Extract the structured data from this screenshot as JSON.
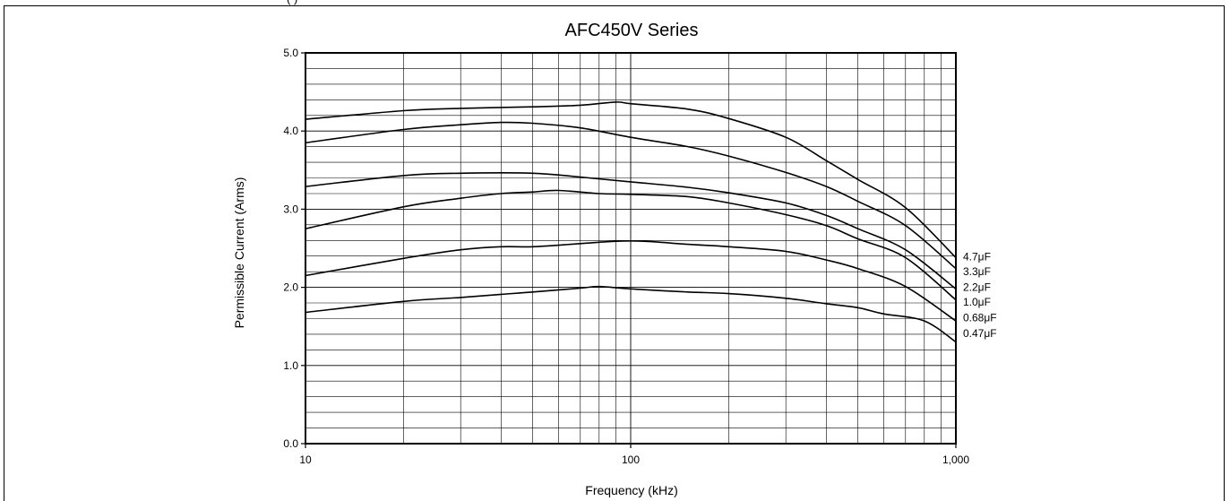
{
  "header_crop_text": "(                    )",
  "chart_data": {
    "type": "line",
    "title": "AFC450V Series",
    "xlabel": "Frequency (kHz)",
    "ylabel": "Permissible Current (Arms)",
    "xscale": "log",
    "xlim": [
      10,
      1000
    ],
    "ylim": [
      0,
      5
    ],
    "x_tick_labels": [
      {
        "value": 10,
        "label": "10"
      },
      {
        "value": 100,
        "label": "100"
      },
      {
        "value": 1000,
        "label": "1,000"
      }
    ],
    "y_tick_labels": [
      {
        "value": 0,
        "label": "0.0"
      },
      {
        "value": 1,
        "label": "1.0"
      },
      {
        "value": 2,
        "label": "2.0"
      },
      {
        "value": 3,
        "label": "3.0"
      },
      {
        "value": 4,
        "label": "4.0"
      },
      {
        "value": 5,
        "label": "5.0"
      }
    ],
    "grid": true,
    "y_minor_step": 0.2,
    "series": [
      {
        "name": "4.7μF",
        "line_color": "#000000",
        "label_y": 2.39,
        "points": [
          [
            10,
            4.15
          ],
          [
            20,
            4.26
          ],
          [
            30,
            4.29
          ],
          [
            50,
            4.31
          ],
          [
            70,
            4.33
          ],
          [
            90,
            4.37
          ],
          [
            100,
            4.35
          ],
          [
            150,
            4.28
          ],
          [
            200,
            4.16
          ],
          [
            300,
            3.92
          ],
          [
            400,
            3.62
          ],
          [
            500,
            3.38
          ],
          [
            700,
            3.02
          ],
          [
            1000,
            2.38
          ]
        ]
      },
      {
        "name": "3.3μF",
        "line_color": "#000000",
        "label_y": 2.2,
        "points": [
          [
            10,
            3.85
          ],
          [
            20,
            4.02
          ],
          [
            30,
            4.08
          ],
          [
            40,
            4.11
          ],
          [
            50,
            4.1
          ],
          [
            70,
            4.04
          ],
          [
            100,
            3.92
          ],
          [
            150,
            3.8
          ],
          [
            200,
            3.68
          ],
          [
            300,
            3.47
          ],
          [
            400,
            3.29
          ],
          [
            500,
            3.1
          ],
          [
            700,
            2.79
          ],
          [
            1000,
            2.24
          ]
        ]
      },
      {
        "name": "2.2μF",
        "line_color": "#000000",
        "label_y": 2.0,
        "points": [
          [
            10,
            3.29
          ],
          [
            20,
            3.43
          ],
          [
            30,
            3.46
          ],
          [
            50,
            3.46
          ],
          [
            70,
            3.41
          ],
          [
            100,
            3.35
          ],
          [
            150,
            3.28
          ],
          [
            200,
            3.21
          ],
          [
            300,
            3.08
          ],
          [
            400,
            2.92
          ],
          [
            500,
            2.75
          ],
          [
            700,
            2.48
          ],
          [
            1000,
            1.98
          ]
        ]
      },
      {
        "name": "1.0μF",
        "line_color": "#000000",
        "label_y": 1.81,
        "points": [
          [
            10,
            2.75
          ],
          [
            20,
            3.03
          ],
          [
            30,
            3.14
          ],
          [
            40,
            3.2
          ],
          [
            50,
            3.22
          ],
          [
            60,
            3.24
          ],
          [
            80,
            3.2
          ],
          [
            100,
            3.19
          ],
          [
            150,
            3.16
          ],
          [
            200,
            3.08
          ],
          [
            300,
            2.93
          ],
          [
            400,
            2.79
          ],
          [
            500,
            2.62
          ],
          [
            700,
            2.38
          ],
          [
            1000,
            1.84
          ]
        ]
      },
      {
        "name": "0.68μF",
        "line_color": "#000000",
        "label_y": 1.61,
        "points": [
          [
            10,
            2.15
          ],
          [
            20,
            2.37
          ],
          [
            30,
            2.48
          ],
          [
            40,
            2.52
          ],
          [
            50,
            2.52
          ],
          [
            70,
            2.56
          ],
          [
            90,
            2.59
          ],
          [
            110,
            2.59
          ],
          [
            150,
            2.55
          ],
          [
            200,
            2.52
          ],
          [
            300,
            2.46
          ],
          [
            400,
            2.35
          ],
          [
            500,
            2.24
          ],
          [
            700,
            2.01
          ],
          [
            1000,
            1.57
          ]
        ]
      },
      {
        "name": "0.47μF",
        "line_color": "#000000",
        "label_y": 1.41,
        "points": [
          [
            10,
            1.68
          ],
          [
            20,
            1.82
          ],
          [
            30,
            1.87
          ],
          [
            40,
            1.91
          ],
          [
            50,
            1.94
          ],
          [
            70,
            1.99
          ],
          [
            80,
            2.01
          ],
          [
            100,
            1.98
          ],
          [
            150,
            1.94
          ],
          [
            200,
            1.92
          ],
          [
            300,
            1.86
          ],
          [
            400,
            1.79
          ],
          [
            500,
            1.74
          ],
          [
            600,
            1.66
          ],
          [
            800,
            1.57
          ],
          [
            1000,
            1.3
          ]
        ]
      }
    ]
  }
}
